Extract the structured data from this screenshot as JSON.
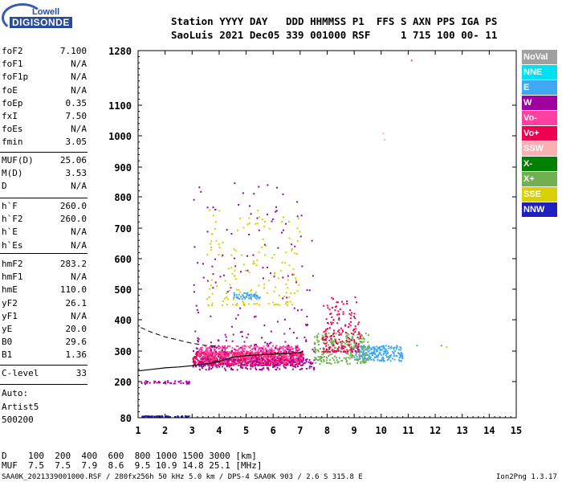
{
  "logo": {
    "top": "Lowell",
    "main": "DIGISONDE"
  },
  "header": {
    "line1": "Station YYYY DAY   DDD HHMMSS P1  FFS S AXN PPS IGA PS",
    "line2": "SaoLuis 2021 Dec05 339 001000 RSF     1 715 100 00- 11"
  },
  "params_group1": [
    {
      "name": "foF2",
      "value": "7.100"
    },
    {
      "name": "foF1",
      "value": "N/A"
    },
    {
      "name": "foF1p",
      "value": "N/A"
    },
    {
      "name": "foE",
      "value": "N/A"
    },
    {
      "name": "foEp",
      "value": "0.35"
    },
    {
      "name": "fxI",
      "value": "7.50"
    },
    {
      "name": "foEs",
      "value": "N/A"
    },
    {
      "name": "fmin",
      "value": "3.05"
    }
  ],
  "params_group2": [
    {
      "name": "MUF(D)",
      "value": "25.06"
    },
    {
      "name": "M(D)",
      "value": "3.53"
    },
    {
      "name": "D",
      "value": "N/A"
    }
  ],
  "params_group3": [
    {
      "name": "h`F",
      "value": "260.0"
    },
    {
      "name": "h`F2",
      "value": "260.0"
    },
    {
      "name": "h`E",
      "value": "N/A"
    },
    {
      "name": "h`Es",
      "value": "N/A"
    }
  ],
  "params_group4": [
    {
      "name": "hmF2",
      "value": "283.2"
    },
    {
      "name": "hmF1",
      "value": "N/A"
    },
    {
      "name": "hmE",
      "value": "110.0"
    },
    {
      "name": "yF2",
      "value": "26.1"
    },
    {
      "name": "yF1",
      "value": "N/A"
    },
    {
      "name": "yE",
      "value": "20.0"
    },
    {
      "name": "B0",
      "value": "29.6"
    },
    {
      "name": "B1",
      "value": "1.36"
    }
  ],
  "clevel": {
    "name": "C-level",
    "value": "33"
  },
  "autoscale": {
    "line1": "Auto:",
    "line2": "Artist5",
    "line3": "500200"
  },
  "legend": [
    {
      "label": "NoVal",
      "color": "#a0a0a0"
    },
    {
      "label": "NNE",
      "color": "#00e0f0"
    },
    {
      "label": "E",
      "color": "#40a8f0"
    },
    {
      "label": "W",
      "color": "#a000a0"
    },
    {
      "label": "Vo-",
      "color": "#ff40a0"
    },
    {
      "label": "Vo+",
      "color": "#f00050"
    },
    {
      "label": "SSW",
      "color": "#f8b0b0"
    },
    {
      "label": "X-",
      "color": "#008000"
    },
    {
      "label": "X+",
      "color": "#70b050"
    },
    {
      "label": "SSE",
      "color": "#d8d000"
    },
    {
      "label": "NNW",
      "color": "#2020c0"
    }
  ],
  "muf_table": {
    "row1": "D    100  200  400  600  800 1000 1500 3000 [km]",
    "row2": "MUF  7.5  7.5  7.9  8.6  9.5 10.9 14.8 25.1 [MHz]"
  },
  "footer": {
    "left": "SAA0K_2021339001000.RSF / 280fx256h 50 kHz 5.0 km / DPS-4 SAA0K 903 / 2.6 S 315.8 E",
    "right": "Ion2Png 1.3.17"
  },
  "chart_data": {
    "type": "scatter",
    "title": "",
    "xlabel": "",
    "ylabel": "",
    "x_ticks": [
      1,
      2,
      3,
      4,
      5,
      6,
      7,
      8,
      9,
      10,
      11,
      12,
      13,
      14,
      15
    ],
    "y_ticks": [
      80,
      200,
      300,
      400,
      500,
      600,
      700,
      800,
      900,
      1000,
      1100,
      1280
    ],
    "xlim": [
      1,
      15
    ],
    "ylim": [
      80,
      1280
    ],
    "y_scale": "nonlinear-virtual-height",
    "grid": false,
    "clusters": [
      {
        "mode": "Vo+",
        "x": [
          3.0,
          7.1
        ],
        "y": [
          255,
          300
        ],
        "density": 900
      },
      {
        "mode": "Vo-",
        "x": [
          3.2,
          7.0
        ],
        "y": [
          260,
          320
        ],
        "density": 500
      },
      {
        "mode": "E",
        "x": [
          9.0,
          10.8
        ],
        "y": [
          270,
          320
        ],
        "density": 220
      },
      {
        "mode": "W",
        "x": [
          3.0,
          7.5
        ],
        "y": [
          240,
          280
        ],
        "density": 200
      },
      {
        "mode": "NNW",
        "x": [
          1.1,
          2.9
        ],
        "y": [
          85,
          88
        ],
        "density": 60
      },
      {
        "mode": "X+",
        "x": [
          7.5,
          9.5
        ],
        "y": [
          260,
          360
        ],
        "density": 250
      },
      {
        "mode": "Vo+",
        "x": [
          7.8,
          9.2
        ],
        "y": [
          300,
          480
        ],
        "density": 180
      },
      {
        "mode": "SSE",
        "x": [
          3.5,
          7.0
        ],
        "y": [
          450,
          760
        ],
        "density": 160
      },
      {
        "mode": "E",
        "x": [
          4.5,
          5.5
        ],
        "y": [
          470,
          490
        ],
        "density": 50
      },
      {
        "mode": "W",
        "x": [
          3.0,
          7.5
        ],
        "y": [
          300,
          850
        ],
        "density": 170
      },
      {
        "mode": "W",
        "x": [
          1.1,
          2.9
        ],
        "y": [
          195,
          205
        ],
        "density": 40
      }
    ],
    "profile_curve": {
      "x": [
        1.0,
        1.5,
        2.0,
        2.5,
        3.0,
        3.5,
        4.0,
        4.5,
        5.0,
        5.5,
        6.0,
        6.5,
        7.0,
        7.1
      ],
      "y": [
        235,
        240,
        245,
        248,
        252,
        258,
        266,
        280,
        285,
        288,
        290,
        292,
        295,
        300
      ]
    },
    "dashed_curve": {
      "x": [
        1.1,
        1.5,
        2.0,
        2.5,
        3.0,
        3.5,
        4.0
      ],
      "y": [
        375,
        360,
        345,
        335,
        325,
        318,
        315
      ]
    }
  }
}
